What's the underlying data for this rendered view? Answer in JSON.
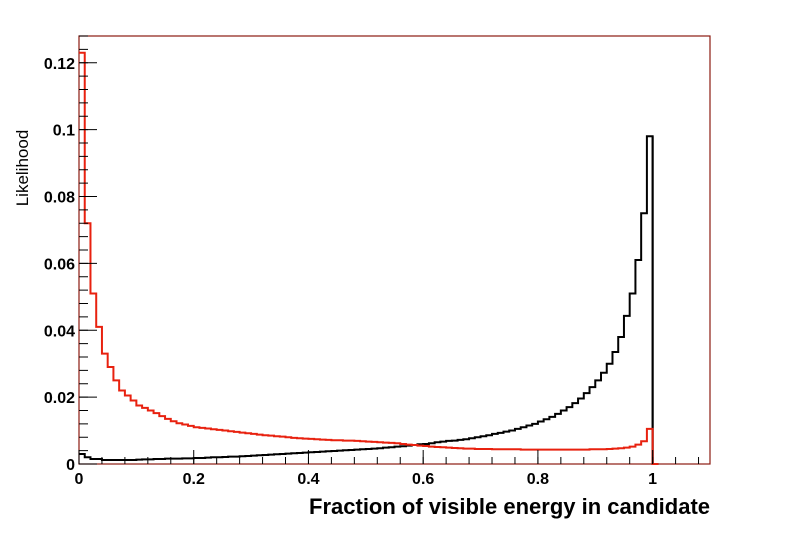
{
  "chart_data": {
    "type": "histogram",
    "title": "",
    "xlabel": "Fraction of visible energy in candidate",
    "ylabel": "Likelihood",
    "xlim": [
      0,
      1.1
    ],
    "ylim": [
      0,
      0.128
    ],
    "bin_width": 0.01,
    "x_tick_labels": [
      "0",
      "0.2",
      "0.4",
      "0.6",
      "0.8",
      "1"
    ],
    "x_tick_values": [
      0,
      0.2,
      0.4,
      0.6,
      0.8,
      1.0
    ],
    "y_tick_labels": [
      "0",
      "0.02",
      "0.04",
      "0.06",
      "0.08",
      "0.1",
      "0.12"
    ],
    "y_tick_values": [
      0,
      0.02,
      0.04,
      0.06,
      0.08,
      0.1,
      0.12
    ],
    "series": [
      {
        "name": "black",
        "color": "#000000",
        "values": [
          0.003,
          0.002,
          0.0015,
          0.0015,
          0.0012,
          0.0012,
          0.0012,
          0.0012,
          0.0012,
          0.0012,
          0.0013,
          0.0014,
          0.0014,
          0.0015,
          0.0015,
          0.0016,
          0.0016,
          0.0016,
          0.0017,
          0.0017,
          0.0018,
          0.0018,
          0.0019,
          0.002,
          0.002,
          0.0021,
          0.0022,
          0.0022,
          0.0023,
          0.0024,
          0.0025,
          0.0026,
          0.0027,
          0.0028,
          0.0029,
          0.003,
          0.0031,
          0.0032,
          0.0033,
          0.0034,
          0.0035,
          0.0036,
          0.0037,
          0.0038,
          0.0039,
          0.004,
          0.0041,
          0.0042,
          0.0043,
          0.0044,
          0.0045,
          0.0046,
          0.0047,
          0.0049,
          0.005,
          0.0052,
          0.0053,
          0.0055,
          0.0057,
          0.0059,
          0.006,
          0.0062,
          0.0065,
          0.0067,
          0.0069,
          0.007,
          0.0072,
          0.0074,
          0.0077,
          0.008,
          0.0083,
          0.0086,
          0.009,
          0.0093,
          0.0097,
          0.01,
          0.0105,
          0.011,
          0.0115,
          0.012,
          0.0127,
          0.0134,
          0.0141,
          0.015,
          0.016,
          0.017,
          0.0182,
          0.0196,
          0.0212,
          0.023,
          0.025,
          0.0273,
          0.03,
          0.0335,
          0.038,
          0.0443,
          0.051,
          0.061,
          0.075,
          0.098,
          0
        ],
        "last_bin_value": 0.098
      },
      {
        "name": "red",
        "color": "#e8210f",
        "values": [
          0.123,
          0.072,
          0.051,
          0.041,
          0.033,
          0.029,
          0.025,
          0.022,
          0.0205,
          0.019,
          0.0175,
          0.0168,
          0.016,
          0.0152,
          0.0143,
          0.0135,
          0.0128,
          0.0122,
          0.0118,
          0.0114,
          0.011,
          0.0108,
          0.0106,
          0.0104,
          0.0102,
          0.01,
          0.0098,
          0.0096,
          0.0094,
          0.0092,
          0.009,
          0.0088,
          0.0086,
          0.0085,
          0.0083,
          0.0082,
          0.008,
          0.0078,
          0.0077,
          0.0076,
          0.0075,
          0.0074,
          0.0073,
          0.0072,
          0.0071,
          0.0071,
          0.007,
          0.007,
          0.0069,
          0.0068,
          0.0067,
          0.0066,
          0.0065,
          0.0064,
          0.0063,
          0.0062,
          0.006,
          0.0058,
          0.0057,
          0.0055,
          0.0054,
          0.0052,
          0.0051,
          0.005,
          0.0049,
          0.0048,
          0.0047,
          0.0046,
          0.0046,
          0.0045,
          0.0045,
          0.0045,
          0.0044,
          0.0044,
          0.0044,
          0.0044,
          0.0044,
          0.0043,
          0.0043,
          0.0043,
          0.0043,
          0.0043,
          0.0043,
          0.0043,
          0.0043,
          0.0043,
          0.0043,
          0.0043,
          0.0043,
          0.0044,
          0.0044,
          0.0044,
          0.0045,
          0.0046,
          0.0047,
          0.0049,
          0.0052,
          0.0058,
          0.0068,
          0.0105,
          0
        ]
      }
    ],
    "frame_color": "#8b1a10",
    "grid": false,
    "legend": "none"
  }
}
